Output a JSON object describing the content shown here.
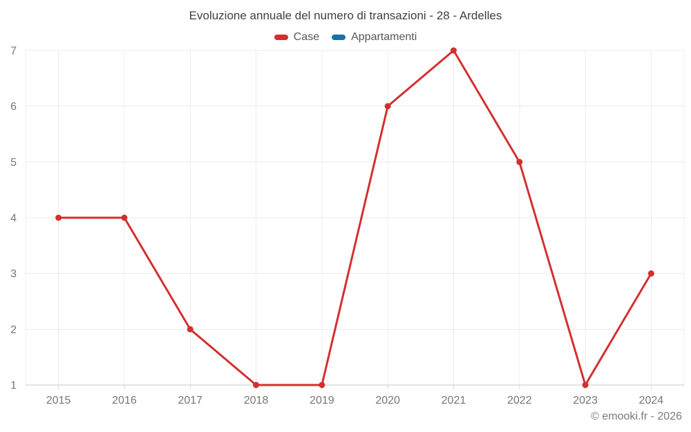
{
  "chart_data": {
    "type": "line",
    "title": "Evoluzione annuale del numero di transazioni - 28 - Ardelles",
    "categories": [
      "2015",
      "2016",
      "2017",
      "2018",
      "2019",
      "2020",
      "2021",
      "2022",
      "2023",
      "2024"
    ],
    "series": [
      {
        "name": "Case",
        "color": "#d32f2f",
        "values": [
          4,
          4,
          2,
          1,
          1,
          6,
          7,
          5,
          1,
          3
        ],
        "visible": true
      },
      {
        "name": "Appartamenti",
        "color": "#1673a8",
        "values": [],
        "visible": false
      }
    ],
    "xlabel": "",
    "ylabel": "",
    "ylim": [
      1,
      7
    ],
    "yticks": [
      1,
      2,
      3,
      4,
      5,
      6,
      7
    ],
    "grid": true,
    "legend_position": "top",
    "marker": "circle",
    "grid_color": "#ececec",
    "axis_line_color": "#c9c9c9",
    "tick_color": "#d6d6d6"
  },
  "watermark": {
    "text": "© emooki.fr - 2026"
  }
}
